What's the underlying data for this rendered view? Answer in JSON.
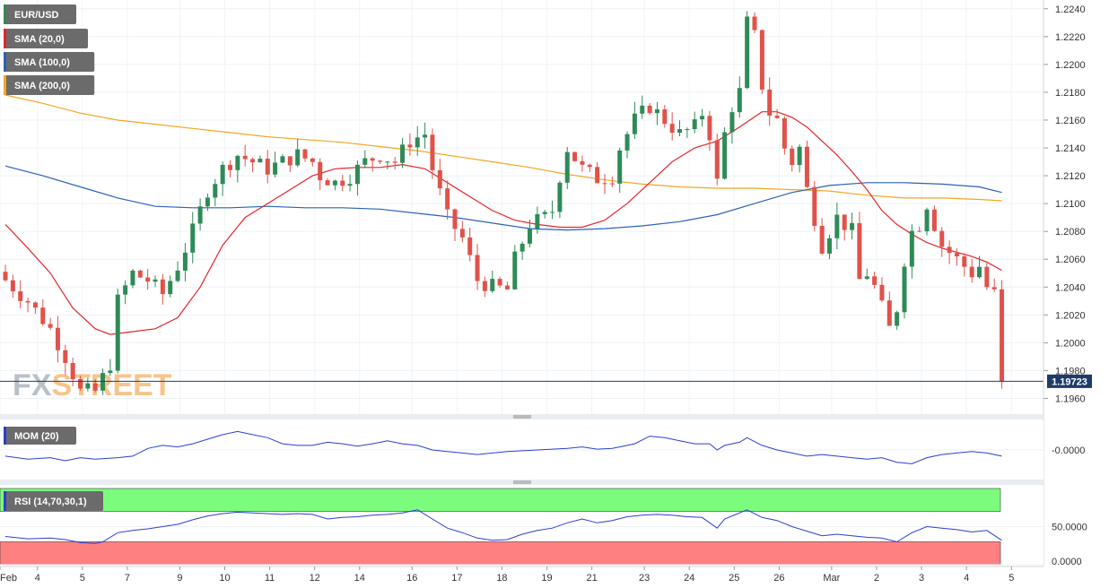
{
  "chart_data": {
    "type": "candlestick",
    "symbol": "EUR/USD",
    "watermark": "FXSTREET",
    "last_price": "1.19723",
    "colors": {
      "up": "#2e8b57",
      "down": "#e0524a",
      "sma20": "#e3262a",
      "sma100": "#2a62b8",
      "sma200": "#f5a623",
      "mom": "#2a3fd0",
      "rsi": "#2a3fd0",
      "rsi_overbought": "#7cfc7c",
      "rsi_oversold": "#ff8080",
      "price_line": "#1f3b6b"
    },
    "legend": [
      {
        "name": "SMA (20,0)",
        "color": "#e3262a"
      },
      {
        "name": "SMA (100,0)",
        "color": "#2a62b8"
      },
      {
        "name": "SMA (200,0)",
        "color": "#f5a623"
      }
    ],
    "price_axis": {
      "ylim": [
        1.195,
        1.2245
      ],
      "ticks": [
        "1.1960",
        "1.1980",
        "1.2000",
        "1.2020",
        "1.2040",
        "1.2060",
        "1.2080",
        "1.2100",
        "1.2120",
        "1.2140",
        "1.2160",
        "1.2180",
        "1.2200",
        "1.2220",
        "1.2240"
      ]
    },
    "x_axis": {
      "bars": 140,
      "labels": [
        {
          "text": "Feb",
          "bar": 0
        },
        {
          "text": "4",
          "bar": 5
        },
        {
          "text": "5",
          "bar": 11
        },
        {
          "text": "7",
          "bar": 17
        },
        {
          "text": "9",
          "bar": 24
        },
        {
          "text": "10",
          "bar": 30
        },
        {
          "text": "11",
          "bar": 36
        },
        {
          "text": "12",
          "bar": 42
        },
        {
          "text": "14",
          "bar": 48
        },
        {
          "text": "16",
          "bar": 55
        },
        {
          "text": "17",
          "bar": 61
        },
        {
          "text": "18",
          "bar": 67
        },
        {
          "text": "19",
          "bar": 73
        },
        {
          "text": "21",
          "bar": 79
        },
        {
          "text": "23",
          "bar": 86
        },
        {
          "text": "24",
          "bar": 92
        },
        {
          "text": "25",
          "bar": 98
        },
        {
          "text": "26",
          "bar": 104
        },
        {
          "text": "Mar",
          "bar": 111
        },
        {
          "text": "2",
          "bar": 117
        },
        {
          "text": "3",
          "bar": 123
        },
        {
          "text": "4",
          "bar": 129
        },
        {
          "text": "5",
          "bar": 135
        }
      ]
    },
    "close_path": [
      [
        0,
        1.2045
      ],
      [
        3,
        1.203
      ],
      [
        6,
        1.201
      ],
      [
        8,
        1.199
      ],
      [
        10,
        1.1965
      ],
      [
        12,
        1.1965
      ],
      [
        13,
        1.1975
      ],
      [
        14,
        1.1985
      ],
      [
        15,
        1.203
      ],
      [
        17,
        1.205
      ],
      [
        19,
        1.2045
      ],
      [
        21,
        1.2035
      ],
      [
        23,
        1.2055
      ],
      [
        25,
        1.208
      ],
      [
        27,
        1.211
      ],
      [
        29,
        1.2125
      ],
      [
        31,
        1.2135
      ],
      [
        33,
        1.213
      ],
      [
        35,
        1.2125
      ],
      [
        37,
        1.213
      ],
      [
        39,
        1.2135
      ],
      [
        41,
        1.213
      ],
      [
        42,
        1.212
      ],
      [
        44,
        1.2115
      ],
      [
        46,
        1.212
      ],
      [
        48,
        1.213
      ],
      [
        50,
        1.2135
      ],
      [
        52,
        1.213
      ],
      [
        54,
        1.2145
      ],
      [
        56,
        1.215
      ],
      [
        57,
        1.2125
      ],
      [
        59,
        1.209
      ],
      [
        61,
        1.2075
      ],
      [
        63,
        1.2045
      ],
      [
        65,
        1.204
      ],
      [
        67,
        1.2038
      ],
      [
        68,
        1.206
      ],
      [
        70,
        1.2085
      ],
      [
        72,
        1.209
      ],
      [
        73,
        1.2095
      ],
      [
        74,
        1.212
      ],
      [
        75,
        1.214
      ],
      [
        77,
        1.2125
      ],
      [
        79,
        1.2118
      ],
      [
        81,
        1.212
      ],
      [
        82,
        1.214
      ],
      [
        84,
        1.216
      ],
      [
        86,
        1.217
      ],
      [
        88,
        1.216
      ],
      [
        90,
        1.215
      ],
      [
        92,
        1.2155
      ],
      [
        93,
        1.2165
      ],
      [
        94,
        1.215
      ],
      [
        95,
        1.2115
      ],
      [
        96,
        1.215
      ],
      [
        97,
        1.217
      ],
      [
        98,
        1.218
      ],
      [
        99,
        1.223
      ],
      [
        100,
        1.222
      ],
      [
        101,
        1.2185
      ],
      [
        102,
        1.2165
      ],
      [
        103,
        1.216
      ],
      [
        104,
        1.214
      ],
      [
        105,
        1.213
      ],
      [
        106,
        1.214
      ],
      [
        107,
        1.211
      ],
      [
        108,
        1.209
      ],
      [
        109,
        1.207
      ],
      [
        110,
        1.208
      ],
      [
        111,
        1.209
      ],
      [
        112,
        1.2085
      ],
      [
        113,
        1.208
      ],
      [
        114,
        1.2045
      ],
      [
        115,
        1.205
      ],
      [
        116,
        1.204
      ],
      [
        117,
        1.2025
      ],
      [
        118,
        1.201
      ],
      [
        119,
        1.2025
      ],
      [
        120,
        1.206
      ],
      [
        121,
        1.208
      ],
      [
        122,
        1.2085
      ],
      [
        123,
        1.21
      ],
      [
        124,
        1.2085
      ],
      [
        125,
        1.207
      ],
      [
        126,
        1.2065
      ],
      [
        127,
        1.206
      ],
      [
        128,
        1.2055
      ],
      [
        129,
        1.205
      ],
      [
        130,
        1.2055
      ],
      [
        131,
        1.204
      ],
      [
        132,
        1.2035
      ],
      [
        133,
        1.1972
      ]
    ],
    "sma20": [
      [
        0,
        1.2085
      ],
      [
        3,
        1.2068
      ],
      [
        6,
        1.205
      ],
      [
        9,
        1.2025
      ],
      [
        12,
        1.201
      ],
      [
        14,
        1.2006
      ],
      [
        17,
        1.2008
      ],
      [
        20,
        1.201
      ],
      [
        23,
        1.2018
      ],
      [
        26,
        1.204
      ],
      [
        29,
        1.207
      ],
      [
        32,
        1.209
      ],
      [
        35,
        1.21
      ],
      [
        38,
        1.211
      ],
      [
        41,
        1.212
      ],
      [
        44,
        1.2125
      ],
      [
        47,
        1.2126
      ],
      [
        50,
        1.2126
      ],
      [
        53,
        1.2128
      ],
      [
        56,
        1.2125
      ],
      [
        59,
        1.2115
      ],
      [
        62,
        1.2105
      ],
      [
        65,
        1.2095
      ],
      [
        68,
        1.2088
      ],
      [
        71,
        1.2085
      ],
      [
        74,
        1.2083
      ],
      [
        77,
        1.2083
      ],
      [
        80,
        1.2088
      ],
      [
        83,
        1.21
      ],
      [
        86,
        1.2115
      ],
      [
        89,
        1.213
      ],
      [
        92,
        1.214
      ],
      [
        95,
        1.2145
      ],
      [
        98,
        1.2155
      ],
      [
        101,
        1.2166
      ],
      [
        103,
        1.2166
      ],
      [
        105,
        1.2162
      ],
      [
        107,
        1.2155
      ],
      [
        109,
        1.2145
      ],
      [
        111,
        1.2135
      ],
      [
        113,
        1.2123
      ],
      [
        115,
        1.211
      ],
      [
        117,
        1.2095
      ],
      [
        119,
        1.2085
      ],
      [
        121,
        1.2078
      ],
      [
        123,
        1.2072
      ],
      [
        125,
        1.2068
      ],
      [
        127,
        1.2065
      ],
      [
        129,
        1.2062
      ],
      [
        131,
        1.2058
      ],
      [
        133,
        1.2052
      ]
    ],
    "sma100": [
      [
        0,
        1.2127
      ],
      [
        5,
        1.212
      ],
      [
        10,
        1.2112
      ],
      [
        15,
        1.2104
      ],
      [
        20,
        1.2098
      ],
      [
        25,
        1.2097
      ],
      [
        30,
        1.2097
      ],
      [
        35,
        1.2098
      ],
      [
        40,
        1.2097
      ],
      [
        45,
        1.2097
      ],
      [
        50,
        1.2096
      ],
      [
        55,
        1.2093
      ],
      [
        60,
        1.209
      ],
      [
        65,
        1.2086
      ],
      [
        70,
        1.2082
      ],
      [
        75,
        1.2081
      ],
      [
        80,
        1.2082
      ],
      [
        85,
        1.2084
      ],
      [
        90,
        1.2087
      ],
      [
        95,
        1.2092
      ],
      [
        100,
        1.21
      ],
      [
        105,
        1.2108
      ],
      [
        110,
        1.2113
      ],
      [
        115,
        1.2115
      ],
      [
        120,
        1.2115
      ],
      [
        125,
        1.2114
      ],
      [
        130,
        1.2112
      ],
      [
        133,
        1.2108
      ]
    ],
    "sma200": [
      [
        0,
        1.2178
      ],
      [
        5,
        1.2172
      ],
      [
        10,
        1.2165
      ],
      [
        15,
        1.216
      ],
      [
        20,
        1.2157
      ],
      [
        25,
        1.2154
      ],
      [
        30,
        1.2151
      ],
      [
        35,
        1.2148
      ],
      [
        40,
        1.2146
      ],
      [
        45,
        1.2144
      ],
      [
        50,
        1.2141
      ],
      [
        55,
        1.2138
      ],
      [
        60,
        1.2134
      ],
      [
        65,
        1.213
      ],
      [
        70,
        1.2126
      ],
      [
        75,
        1.2121
      ],
      [
        80,
        1.2117
      ],
      [
        85,
        1.2114
      ],
      [
        90,
        1.2112
      ],
      [
        95,
        1.2111
      ],
      [
        100,
        1.2111
      ],
      [
        105,
        1.211
      ],
      [
        110,
        1.2109
      ],
      [
        115,
        1.2106
      ],
      [
        120,
        1.2104
      ],
      [
        125,
        1.2104
      ],
      [
        130,
        1.2103
      ],
      [
        133,
        1.2102
      ]
    ],
    "mom_panel": {
      "label": "MOM (20)",
      "tick": "-0.0000",
      "ylim": [
        -0.0035,
        0.0035
      ],
      "points": [
        [
          0,
          -0.0008
        ],
        [
          3,
          -0.0012
        ],
        [
          6,
          -0.001
        ],
        [
          8,
          -0.0014
        ],
        [
          10,
          -0.001
        ],
        [
          12,
          -0.0012
        ],
        [
          15,
          -0.001
        ],
        [
          17,
          -0.0008
        ],
        [
          19,
          0.0002
        ],
        [
          21,
          0.0006
        ],
        [
          23,
          0.0004
        ],
        [
          25,
          0.0008
        ],
        [
          27,
          0.0014
        ],
        [
          29,
          0.002
        ],
        [
          31,
          0.0024
        ],
        [
          33,
          0.002
        ],
        [
          35,
          0.0016
        ],
        [
          37,
          0.0008
        ],
        [
          39,
          0.0006
        ],
        [
          41,
          0.0006
        ],
        [
          43,
          0.001
        ],
        [
          45,
          0.0008
        ],
        [
          47,
          0.0005
        ],
        [
          49,
          0.0008
        ],
        [
          51,
          0.0012
        ],
        [
          53,
          0.0008
        ],
        [
          55,
          0.0006
        ],
        [
          57,
          0.0
        ],
        [
          59,
          -0.0002
        ],
        [
          61,
          -0.0004
        ],
        [
          63,
          -0.0006
        ],
        [
          65,
          -0.0004
        ],
        [
          67,
          -0.0002
        ],
        [
          69,
          -0.0001
        ],
        [
          71,
          0.0
        ],
        [
          73,
          0.0001
        ],
        [
          75,
          0.0002
        ],
        [
          77,
          0.0004
        ],
        [
          79,
          0.0001
        ],
        [
          81,
          0.0002
        ],
        [
          83,
          0.0006
        ],
        [
          84,
          0.0008
        ],
        [
          86,
          0.0018
        ],
        [
          88,
          0.0016
        ],
        [
          90,
          0.0012
        ],
        [
          92,
          0.0008
        ],
        [
          94,
          0.0008
        ],
        [
          95,
          0.0
        ],
        [
          96,
          0.0006
        ],
        [
          97,
          0.0008
        ],
        [
          98,
          0.001
        ],
        [
          99,
          0.0016
        ],
        [
          101,
          0.0006
        ],
        [
          103,
          0.0
        ],
        [
          105,
          -0.0004
        ],
        [
          107,
          -0.0008
        ],
        [
          109,
          -0.0006
        ],
        [
          111,
          -0.0008
        ],
        [
          113,
          -0.001
        ],
        [
          115,
          -0.0012
        ],
        [
          117,
          -0.001
        ],
        [
          119,
          -0.0016
        ],
        [
          121,
          -0.0018
        ],
        [
          123,
          -0.001
        ],
        [
          125,
          -0.0006
        ],
        [
          127,
          -0.0004
        ],
        [
          129,
          -0.0002
        ],
        [
          131,
          -0.0004
        ],
        [
          133,
          -0.0008
        ]
      ]
    },
    "rsi_panel": {
      "label": "RSI (14,70,30,1)",
      "ticks": [
        "50.0000",
        "0.0000"
      ],
      "ylim": [
        0,
        100
      ],
      "overbought": 70,
      "oversold": 30,
      "points": [
        [
          0,
          37
        ],
        [
          3,
          34
        ],
        [
          6,
          35
        ],
        [
          8,
          33
        ],
        [
          10,
          29
        ],
        [
          12,
          28
        ],
        [
          13,
          30
        ],
        [
          15,
          42
        ],
        [
          17,
          45
        ],
        [
          19,
          47
        ],
        [
          21,
          50
        ],
        [
          23,
          53
        ],
        [
          25,
          59
        ],
        [
          27,
          64
        ],
        [
          29,
          67
        ],
        [
          31,
          69
        ],
        [
          33,
          68
        ],
        [
          35,
          67
        ],
        [
          37,
          66
        ],
        [
          39,
          67
        ],
        [
          41,
          66
        ],
        [
          43,
          60
        ],
        [
          45,
          62
        ],
        [
          47,
          63
        ],
        [
          49,
          65
        ],
        [
          51,
          66
        ],
        [
          53,
          68
        ],
        [
          55,
          72
        ],
        [
          57,
          60
        ],
        [
          59,
          48
        ],
        [
          61,
          42
        ],
        [
          63,
          35
        ],
        [
          65,
          32
        ],
        [
          67,
          33
        ],
        [
          69,
          40
        ],
        [
          71,
          45
        ],
        [
          73,
          48
        ],
        [
          75,
          55
        ],
        [
          77,
          60
        ],
        [
          79,
          55
        ],
        [
          81,
          58
        ],
        [
          83,
          63
        ],
        [
          85,
          65
        ],
        [
          87,
          66
        ],
        [
          89,
          65
        ],
        [
          91,
          63
        ],
        [
          93,
          62
        ],
        [
          95,
          48
        ],
        [
          96,
          60
        ],
        [
          97,
          64
        ],
        [
          99,
          72
        ],
        [
          101,
          62
        ],
        [
          103,
          58
        ],
        [
          105,
          50
        ],
        [
          107,
          44
        ],
        [
          109,
          38
        ],
        [
          111,
          40
        ],
        [
          113,
          38
        ],
        [
          115,
          36
        ],
        [
          117,
          35
        ],
        [
          119,
          30
        ],
        [
          121,
          42
        ],
        [
          123,
          50
        ],
        [
          125,
          48
        ],
        [
          127,
          46
        ],
        [
          129,
          43
        ],
        [
          131,
          45
        ],
        [
          133,
          32
        ]
      ]
    }
  }
}
